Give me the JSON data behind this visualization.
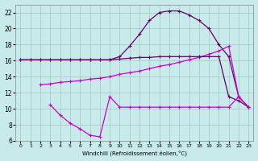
{
  "background_color": "#c8eaea",
  "grid_color": "#a0c8c0",
  "line_color_dark": "#660066",
  "line_color_bright": "#cc00cc",
  "xlim": [
    -0.5,
    23.5
  ],
  "ylim": [
    6,
    23
  ],
  "yticks": [
    6,
    8,
    10,
    12,
    14,
    16,
    18,
    20,
    22
  ],
  "xticks": [
    0,
    1,
    2,
    3,
    4,
    5,
    6,
    7,
    8,
    9,
    10,
    11,
    12,
    13,
    14,
    15,
    16,
    17,
    18,
    19,
    20,
    21,
    22,
    23
  ],
  "xlabel": "Windchill (Refroidissement éolien,°C)",
  "curve1_x": [
    0,
    1,
    2,
    3,
    4,
    5,
    6,
    7,
    8,
    9,
    10,
    11,
    12,
    13,
    14,
    15,
    16,
    17,
    18,
    19,
    20,
    21,
    22,
    23
  ],
  "curve1_y": [
    16.1,
    16.1,
    16.1,
    16.1,
    16.1,
    16.1,
    16.1,
    16.1,
    16.1,
    16.1,
    16.5,
    17.8,
    19.3,
    21.0,
    22.0,
    22.2,
    22.2,
    21.7,
    21.0,
    20.0,
    18.0,
    16.5,
    11.5,
    10.2
  ],
  "curve2_x": [
    2,
    3,
    4,
    5,
    6,
    7,
    8,
    9,
    10,
    11,
    12,
    13,
    14,
    15,
    16,
    17,
    18,
    19,
    20,
    21,
    22,
    23
  ],
  "curve2_y": [
    13.0,
    13.1,
    13.3,
    13.4,
    13.5,
    13.7,
    13.8,
    14.0,
    14.3,
    14.5,
    14.7,
    15.0,
    15.3,
    15.5,
    15.8,
    16.1,
    16.4,
    16.8,
    17.2,
    17.8,
    11.5,
    10.2
  ],
  "curve3_x": [
    0,
    1,
    2,
    3,
    4,
    5,
    6,
    7,
    8,
    9,
    10,
    11,
    12,
    13,
    14,
    15,
    16,
    17,
    18,
    19,
    20,
    21,
    22,
    23
  ],
  "curve3_y": [
    16.1,
    16.1,
    16.1,
    16.1,
    16.1,
    16.1,
    16.1,
    16.1,
    16.1,
    16.1,
    16.2,
    16.3,
    16.4,
    16.4,
    16.5,
    16.5,
    16.5,
    16.5,
    16.5,
    16.5,
    16.5,
    11.5,
    11.0,
    10.2
  ],
  "curve4_x": [
    3,
    4,
    5,
    6,
    7,
    8,
    9,
    10,
    11,
    12,
    13,
    14,
    15,
    16,
    17,
    18,
    19,
    20,
    21,
    22,
    23
  ],
  "curve4_y": [
    10.5,
    9.2,
    8.2,
    7.5,
    6.7,
    6.5,
    11.5,
    10.2,
    10.2,
    10.2,
    10.2,
    10.2,
    10.2,
    10.2,
    10.2,
    10.2,
    10.2,
    10.2,
    10.2,
    11.5,
    10.2
  ]
}
